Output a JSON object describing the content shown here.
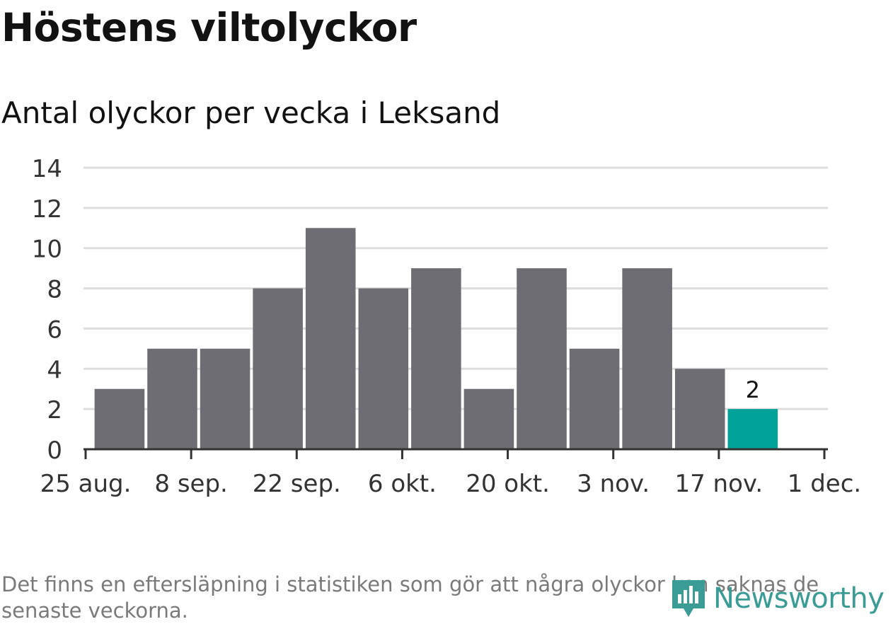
{
  "header": {
    "title": "Höstens viltolyckor",
    "subtitle": "Antal olyckor per vecka i Leksand"
  },
  "footer": {
    "note": "Det finns en eftersläpning i statistiken som gör att några olyckor kan saknas de senaste veckorna.",
    "brand": "Newsworthy"
  },
  "colors": {
    "bar": "#6e6d73",
    "highlight": "#00a299",
    "grid": "#dddddd",
    "axis": "#333333",
    "brand": "#3a9c95"
  },
  "chart_data": {
    "type": "bar",
    "x": [
      "2019-08-26",
      "2019-09-02",
      "2019-09-09",
      "2019-09-16",
      "2019-09-23",
      "2019-09-30",
      "2019-10-07",
      "2019-10-14",
      "2019-10-21",
      "2019-10-28",
      "2019-11-04",
      "2019-11-11",
      "2019-11-18"
    ],
    "values": [
      3,
      5,
      5,
      8,
      11,
      8,
      9,
      3,
      9,
      5,
      9,
      4,
      2
    ],
    "highlight_index": 12,
    "value_labels": [
      {
        "index": 12,
        "text": "2"
      }
    ],
    "ylim": [
      0,
      14
    ],
    "yticks": [
      "0",
      "2",
      "4",
      "6",
      "8",
      "10",
      "12",
      "14"
    ],
    "xticks": [
      "25 aug.",
      "8 sep.",
      "22 sep.",
      "6 okt.",
      "20 okt.",
      "3 nov.",
      "17 nov.",
      "1 dec."
    ],
    "xlim": [
      "2019-08-25",
      "2019-12-01"
    ],
    "grid": true,
    "xlabel": "",
    "ylabel": ""
  }
}
